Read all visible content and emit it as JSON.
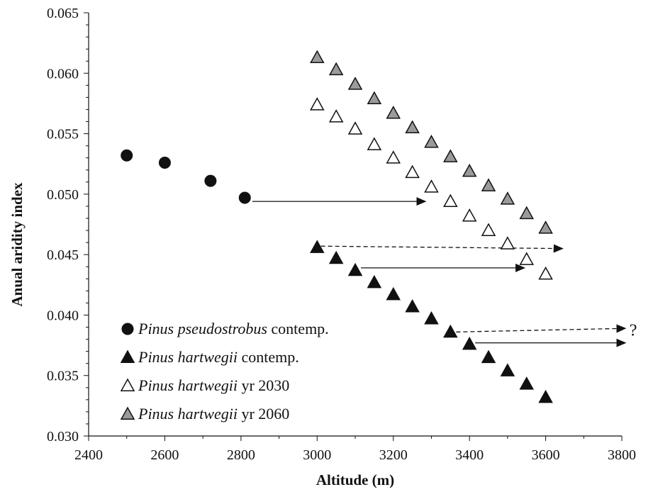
{
  "chart_data": {
    "type": "scatter",
    "title": "",
    "xlabel": "Altitude  (m)",
    "ylabel": "Anual  aridity  index",
    "xlim": [
      2400,
      3800
    ],
    "ylim": [
      0.03,
      0.065
    ],
    "xticks": [
      "2400",
      "2600",
      "2800",
      "3000",
      "3200",
      "3400",
      "3600",
      "3800"
    ],
    "yticks": [
      "0.030",
      "0.035",
      "0.040",
      "0.045",
      "0.050",
      "0.055",
      "0.060",
      "0.065"
    ],
    "grid": false,
    "legend_position": "bottom-left",
    "series": [
      {
        "name_italic": "Pinus pseudostrobus",
        "name_suffix": " contemp.",
        "marker": "filled-circle",
        "color": "#111111",
        "points": [
          [
            2500,
            0.0532
          ],
          [
            2600,
            0.0526
          ],
          [
            2720,
            0.0511
          ],
          [
            2810,
            0.0497
          ]
        ]
      },
      {
        "name_italic": "Pinus hartwegii",
        "name_suffix": " contemp.",
        "marker": "filled-triangle",
        "color": "#111111",
        "points": [
          [
            3000,
            0.0456
          ],
          [
            3050,
            0.0447
          ],
          [
            3100,
            0.0437
          ],
          [
            3150,
            0.0427
          ],
          [
            3200,
            0.0417
          ],
          [
            3250,
            0.0407
          ],
          [
            3300,
            0.0397
          ],
          [
            3350,
            0.0386
          ],
          [
            3400,
            0.0376
          ],
          [
            3450,
            0.0365
          ],
          [
            3500,
            0.0354
          ],
          [
            3550,
            0.0343
          ],
          [
            3600,
            0.0332
          ]
        ]
      },
      {
        "name_italic": "Pinus hartwegii",
        "name_suffix": " yr 2030",
        "marker": "open-triangle",
        "color": "#ffffff",
        "points": [
          [
            3000,
            0.0574
          ],
          [
            3050,
            0.0564
          ],
          [
            3100,
            0.0554
          ],
          [
            3150,
            0.0541
          ],
          [
            3200,
            0.053
          ],
          [
            3250,
            0.0518
          ],
          [
            3300,
            0.0506
          ],
          [
            3350,
            0.0494
          ],
          [
            3400,
            0.0482
          ],
          [
            3450,
            0.047
          ],
          [
            3500,
            0.0459
          ],
          [
            3550,
            0.0446
          ],
          [
            3600,
            0.0434
          ]
        ]
      },
      {
        "name_italic": "Pinus hartwegii",
        "name_suffix": " yr 2060",
        "marker": "gray-triangle",
        "color": "#9a9a9a",
        "points": [
          [
            3000,
            0.0613
          ],
          [
            3050,
            0.0603
          ],
          [
            3100,
            0.0591
          ],
          [
            3150,
            0.0579
          ],
          [
            3200,
            0.0567
          ],
          [
            3250,
            0.0555
          ],
          [
            3300,
            0.0543
          ],
          [
            3350,
            0.0531
          ],
          [
            3400,
            0.0519
          ],
          [
            3450,
            0.0507
          ],
          [
            3500,
            0.0496
          ],
          [
            3550,
            0.0484
          ],
          [
            3600,
            0.0472
          ]
        ]
      }
    ],
    "arrows": [
      {
        "from": [
          2830,
          0.0494
        ],
        "to": [
          3285,
          0.0494
        ],
        "style": "solid"
      },
      {
        "from": [
          3010,
          0.0457
        ],
        "to": [
          3645,
          0.0455
        ],
        "style": "dashed"
      },
      {
        "from": [
          3115,
          0.0439
        ],
        "to": [
          3545,
          0.0439
        ],
        "style": "solid"
      },
      {
        "from": [
          3365,
          0.0386
        ],
        "to": [
          3810,
          0.0389
        ],
        "style": "dashed"
      },
      {
        "from": [
          3415,
          0.0377
        ],
        "to": [
          3810,
          0.0377
        ],
        "style": "solid"
      }
    ],
    "annotations": [
      {
        "text": "?",
        "x": 3820,
        "y": 0.0383
      }
    ]
  }
}
